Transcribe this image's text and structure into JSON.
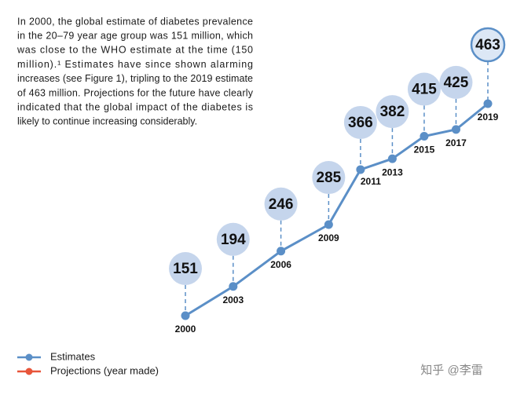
{
  "intro": [
    "In 2000, the global estimate of diabetes prevalence",
    "in the 20–79 year age group was 151 million, which",
    "was close to the WHO estimate at the time (150",
    "million).¹ Estimates have since shown alarming",
    "increases (see Figure 1), tripling to the 2019 estimate",
    "of 463 million. Projections for the future have clearly",
    "indicated that the global impact of the diabetes is",
    "likely to continue increasing considerably."
  ],
  "chart_data": {
    "type": "line",
    "x": [
      2000,
      2003,
      2006,
      2009,
      2011,
      2013,
      2015,
      2017,
      2019
    ],
    "series": [
      {
        "name": "Estimates",
        "color": "#5b8fc7",
        "values": [
          151,
          194,
          246,
          285,
          366,
          382,
          415,
          425,
          463
        ]
      }
    ],
    "extra_legend": [
      {
        "name": "Projections (year made)",
        "color": "#e8553a"
      }
    ]
  },
  "watermark": "知乎 @李雷"
}
